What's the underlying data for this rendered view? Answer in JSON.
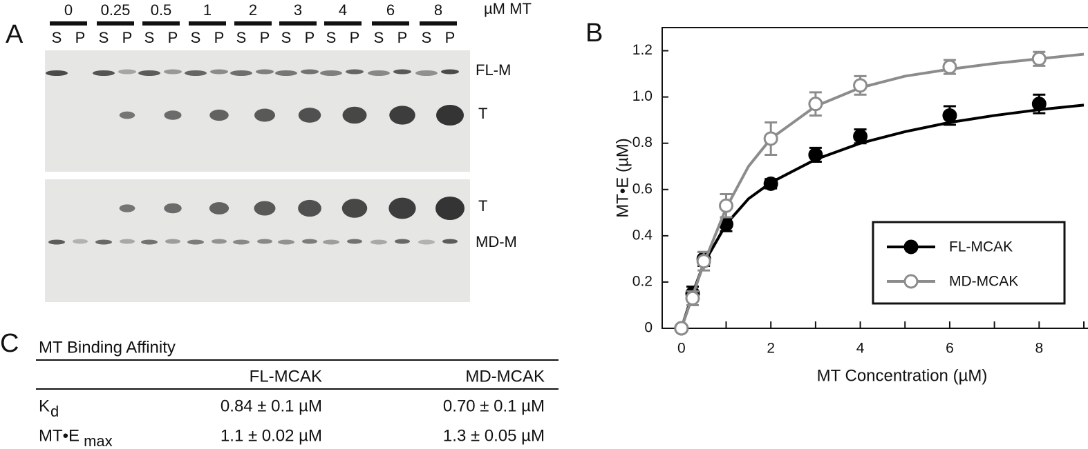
{
  "panel_a": {
    "label": "A",
    "concentrations": [
      "0",
      "0.25",
      "0.5",
      "1",
      "2",
      "3",
      "4",
      "6",
      "8"
    ],
    "unit": "µM MT",
    "lanes": [
      "S",
      "P"
    ],
    "band_labels": [
      "FL-M",
      "T",
      "T",
      "MD-M"
    ]
  },
  "chart_data": {
    "type": "scatter",
    "label": "B",
    "x_label": "MT Concentration (µM)",
    "y_label": "MT•E (µM)",
    "x": [
      0,
      0.25,
      0.5,
      1,
      2,
      3,
      4,
      6,
      8
    ],
    "fit_x": [
      0,
      0.25,
      0.5,
      1,
      1.5,
      2,
      3,
      4,
      5,
      6,
      7,
      8,
      9
    ],
    "series": [
      {
        "name": "FL-MCAK",
        "color": "#000000",
        "marker": "filled",
        "values": [
          0,
          0.15,
          0.3,
          0.45,
          0.625,
          0.75,
          0.83,
          0.92,
          0.97
        ],
        "errors": [
          0,
          0.03,
          0.03,
          0.03,
          0.02,
          0.03,
          0.03,
          0.04,
          0.04
        ],
        "fit": [
          0,
          0.15,
          0.28,
          0.45,
          0.56,
          0.63,
          0.73,
          0.8,
          0.85,
          0.89,
          0.92,
          0.945,
          0.965
        ]
      },
      {
        "name": "MD-MCAK",
        "color": "#8c8c8c",
        "marker": "open",
        "values": [
          0,
          0.13,
          0.29,
          0.53,
          0.82,
          0.97,
          1.05,
          1.13,
          1.165
        ],
        "errors": [
          0,
          0.03,
          0.04,
          0.05,
          0.07,
          0.05,
          0.04,
          0.03,
          0.03
        ],
        "fit": [
          0,
          0.14,
          0.28,
          0.52,
          0.7,
          0.82,
          0.96,
          1.04,
          1.09,
          1.12,
          1.145,
          1.165,
          1.185
        ]
      }
    ],
    "xlim": [
      -0.43,
      9.0
    ],
    "ylim": [
      0,
      1.3
    ],
    "xticks": [
      0,
      2,
      4,
      6,
      8
    ],
    "xminor": [
      1,
      3,
      5,
      7,
      9
    ],
    "yticks": [
      0,
      0.2,
      0.4,
      0.6,
      0.8,
      {
        "value": 1,
        "label": "1.0"
      },
      1.2
    ],
    "legend": "lower right"
  },
  "panel_c": {
    "label": "C",
    "title": "MT Binding Affinity",
    "columns": [
      "FL-MCAK",
      "MD-MCAK"
    ],
    "rows": [
      {
        "label": "K",
        "sub": "d",
        "values": [
          "0.84 ± 0.1 µM",
          "0.70 ± 0.1 µM"
        ]
      },
      {
        "label": "MT•E",
        "sub": "max",
        "values": [
          "1.1 ± 0.02 µM",
          "1.3 ± 0.05 µM"
        ]
      }
    ]
  }
}
